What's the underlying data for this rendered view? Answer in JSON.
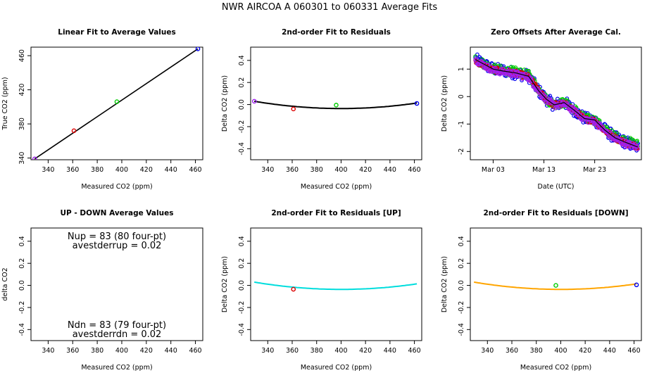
{
  "title": "NWR   AIRCOA A   060301 to 060331   Average Fits",
  "chart_data": [
    {
      "id": "p1",
      "type": "scatter",
      "title": "Linear Fit to Average Values",
      "xlabel": "Measured CO2 (ppm)",
      "ylabel": "True CO2 (ppm)",
      "xlim": [
        326,
        466
      ],
      "ylim": [
        338,
        470
      ],
      "xticks": [
        340,
        360,
        380,
        400,
        420,
        440,
        460
      ],
      "yticks": [
        340,
        380,
        420,
        460
      ],
      "colors": {
        "line": "#000000"
      },
      "series": [
        {
          "points": [
            [
              329,
              339
            ],
            [
              361,
              372
            ],
            [
              396,
              406
            ],
            [
              462,
              468
            ]
          ],
          "colors": [
            "#a020f0",
            "#dd0000",
            "#00cc00",
            "#0000ee"
          ]
        }
      ],
      "fit_line": [
        [
          329,
          339
        ],
        [
          462,
          468
        ]
      ]
    },
    {
      "id": "p2",
      "type": "scatter",
      "title": "2nd-order Fit to Residuals",
      "xlabel": "Measured CO2 (ppm)",
      "ylabel": "Delta CO2 (ppm)",
      "xlim": [
        326,
        466
      ],
      "ylim": [
        -0.5,
        0.52
      ],
      "xticks": [
        340,
        360,
        380,
        400,
        420,
        440,
        460
      ],
      "yticks": [
        -0.4,
        -0.2,
        0.0,
        0.2,
        0.4
      ],
      "colors": {
        "curve": "#000000"
      },
      "series": [
        {
          "points": [
            [
              329,
              0.03
            ],
            [
              361,
              -0.04
            ],
            [
              396,
              -0.005
            ],
            [
              462,
              0.01
            ]
          ],
          "colors": [
            "#a020f0",
            "#dd0000",
            "#00cc00",
            "#0000ee"
          ]
        }
      ],
      "curve": {
        "x1": 329,
        "x2": 462,
        "a": 1.3e-05,
        "b": -0.0104,
        "c": 2.044
      }
    },
    {
      "id": "p3",
      "type": "scatter",
      "title": "Zero Offsets After Average Cal.",
      "xlabel": "Date (UTC)",
      "ylabel": "Delta CO2 (ppm)",
      "xlim": [
        -2.5,
        31.2
      ],
      "ylim": [
        -2.3,
        1.8
      ],
      "xticks": [
        2,
        12,
        22
      ],
      "xticklabels": [
        "Mar 03",
        "Mar 13",
        "Mar 23"
      ],
      "yticks": [
        -2,
        -1,
        0,
        1
      ],
      "colors": {
        "trend": "#000000"
      },
      "series": [
        {
          "name": "",
          "color": "#0000ee",
          "trend": [
            [
              -1.5,
              1.35
            ],
            [
              0.5,
              1.15
            ],
            [
              2,
              1.0
            ],
            [
              4,
              0.95
            ],
            [
              6.5,
              0.85
            ],
            [
              9,
              0.75
            ],
            [
              11,
              0.2
            ],
            [
              12.5,
              -0.1
            ],
            [
              14,
              -0.3
            ],
            [
              16,
              -0.2
            ],
            [
              18,
              -0.5
            ],
            [
              20,
              -0.8
            ],
            [
              22,
              -0.85
            ],
            [
              24,
              -1.2
            ],
            [
              26,
              -1.5
            ],
            [
              28,
              -1.65
            ],
            [
              30.5,
              -1.85
            ]
          ],
          "spread": 0.22
        },
        {
          "name": "",
          "color": "#00cc00",
          "trend": [
            [
              -1.5,
              1.38
            ],
            [
              0.5,
              1.15
            ],
            [
              2,
              1.02
            ],
            [
              4,
              0.95
            ],
            [
              6.5,
              0.9
            ],
            [
              9,
              0.78
            ],
            [
              11,
              0.25
            ],
            [
              12.5,
              -0.1
            ],
            [
              14,
              -0.28
            ],
            [
              16,
              -0.22
            ],
            [
              18,
              -0.45
            ],
            [
              20,
              -0.8
            ],
            [
              22,
              -0.85
            ],
            [
              24,
              -1.2
            ],
            [
              26,
              -1.45
            ],
            [
              28,
              -1.6
            ],
            [
              30.5,
              -1.75
            ]
          ],
          "spread": 0.16
        },
        {
          "name": "",
          "color": "#dd0000",
          "trend": [
            [
              -1.5,
              1.3
            ],
            [
              0.5,
              1.1
            ],
            [
              2,
              0.98
            ],
            [
              4,
              0.92
            ],
            [
              6.5,
              0.85
            ],
            [
              9,
              0.72
            ],
            [
              11,
              0.2
            ],
            [
              12.5,
              -0.12
            ],
            [
              14,
              -0.3
            ],
            [
              16,
              -0.25
            ],
            [
              18,
              -0.5
            ],
            [
              20,
              -0.82
            ],
            [
              22,
              -0.88
            ],
            [
              24,
              -1.25
            ],
            [
              26,
              -1.5
            ],
            [
              28,
              -1.68
            ],
            [
              30.5,
              -1.82
            ]
          ],
          "spread": 0.1
        },
        {
          "name": "",
          "color": "#a020f0",
          "trend": [
            [
              -1.5,
              1.35
            ],
            [
              0.5,
              1.12
            ],
            [
              2,
              0.95
            ],
            [
              4,
              0.9
            ],
            [
              6.5,
              0.82
            ],
            [
              9,
              0.7
            ],
            [
              11,
              0.18
            ],
            [
              12.5,
              -0.12
            ],
            [
              14,
              -0.32
            ],
            [
              16,
              -0.28
            ],
            [
              18,
              -0.52
            ],
            [
              20,
              -0.82
            ],
            [
              22,
              -0.9
            ],
            [
              24,
              -1.25
            ],
            [
              26,
              -1.55
            ],
            [
              28,
              -1.7
            ],
            [
              30.5,
              -1.85
            ]
          ],
          "spread": 0.12
        }
      ],
      "trend_line": [
        [
          -1.5,
          1.35
        ],
        [
          0.5,
          1.15
        ],
        [
          2,
          1.0
        ],
        [
          4,
          0.93
        ],
        [
          6.5,
          0.86
        ],
        [
          9,
          0.74
        ],
        [
          11,
          0.2
        ],
        [
          12.5,
          -0.1
        ],
        [
          14,
          -0.3
        ],
        [
          16,
          -0.22
        ],
        [
          18,
          -0.5
        ],
        [
          20,
          -0.8
        ],
        [
          22,
          -0.85
        ],
        [
          24,
          -1.22
        ],
        [
          26,
          -1.5
        ],
        [
          28,
          -1.66
        ],
        [
          30.5,
          -1.84
        ]
      ]
    },
    {
      "id": "p4",
      "type": "scatter",
      "title": "UP - DOWN Average Values",
      "xlabel": "Measured CO2 (ppm)",
      "ylabel": "delta CO2",
      "xlim": [
        326,
        466
      ],
      "ylim": [
        -0.5,
        0.52
      ],
      "xticks": [
        340,
        360,
        380,
        400,
        420,
        440,
        460
      ],
      "yticks": [
        -0.4,
        -0.2,
        0.0,
        0.2,
        0.4
      ],
      "annotations": {
        "top_line1": "Nup = 83 (80 four-pt)",
        "top_line2": "avestderrup =  0.02",
        "bottom_line1": "Ndn = 83 (79 four-pt)",
        "bottom_line2": "avestderrdn =  0.02"
      }
    },
    {
      "id": "p5",
      "type": "scatter",
      "title": "2nd-order Fit to Residuals [UP]",
      "xlabel": "Measured CO2 (ppm)",
      "ylabel": "Delta CO2 (ppm)",
      "xlim": [
        326,
        466
      ],
      "ylim": [
        -0.5,
        0.52
      ],
      "xticks": [
        340,
        360,
        380,
        400,
        420,
        440,
        460
      ],
      "yticks": [
        -0.4,
        -0.2,
        0.0,
        0.2,
        0.4
      ],
      "colors": {
        "curve": "#00dddd"
      },
      "series": [
        {
          "points": [
            [
              361,
              -0.035
            ]
          ],
          "colors": [
            "#dd0000"
          ]
        }
      ],
      "curve": {
        "x1": 329,
        "x2": 462,
        "a": 1.3e-05,
        "b": -0.0104,
        "c": 2.044
      }
    },
    {
      "id": "p6",
      "type": "scatter",
      "title": "2nd-order Fit to Residuals [DOWN]",
      "xlabel": "Measured CO2 (ppm)",
      "ylabel": "Delta CO2 (ppm)",
      "xlim": [
        326,
        466
      ],
      "ylim": [
        -0.5,
        0.52
      ],
      "xticks": [
        340,
        360,
        380,
        400,
        420,
        440,
        460
      ],
      "yticks": [
        -0.4,
        -0.2,
        0.0,
        0.2,
        0.4
      ],
      "colors": {
        "curve": "#ffa500"
      },
      "series": [
        {
          "points": [
            [
              396,
              0.0
            ],
            [
              462,
              0.005
            ]
          ],
          "colors": [
            "#00cc00",
            "#0000ee"
          ]
        }
      ],
      "curve": {
        "x1": 329,
        "x2": 462,
        "a": 1.3e-05,
        "b": -0.0104,
        "c": 2.044
      }
    }
  ]
}
